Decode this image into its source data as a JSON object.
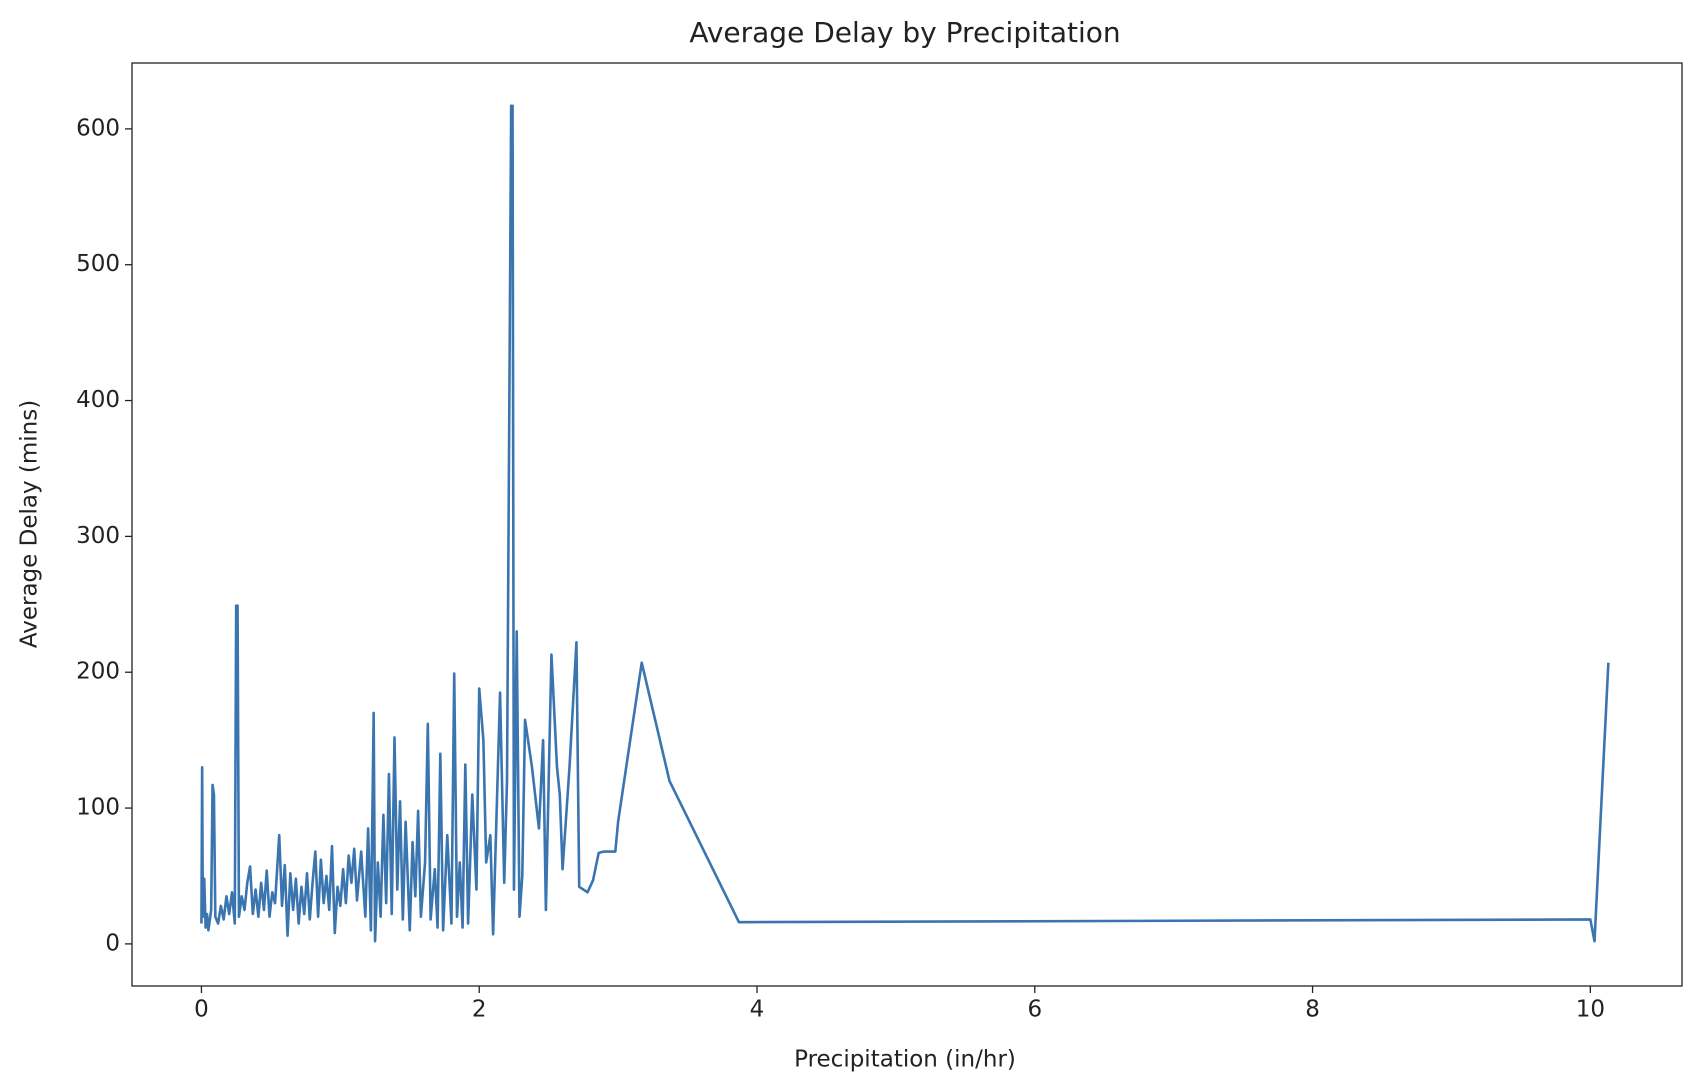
{
  "chart_data": {
    "type": "line",
    "title": "Average Delay by Precipitation",
    "xlabel": "Precipitation (in/hr)",
    "ylabel": "Average Delay (mins)",
    "xlim": [
      -0.5,
      10.66
    ],
    "ylim": [
      -31,
      648.5
    ],
    "xticks": [
      0,
      2,
      4,
      6,
      8,
      10
    ],
    "yticks": [
      0,
      100,
      200,
      300,
      400,
      500,
      600
    ],
    "grid": false,
    "x": [
      0,
      0.005,
      0.01,
      0.02,
      0.03,
      0.04,
      0.05,
      0.07,
      0.08,
      0.09,
      0.1,
      0.12,
      0.14,
      0.16,
      0.18,
      0.2,
      0.22,
      0.24,
      0.25,
      0.26,
      0.27,
      0.29,
      0.31,
      0.33,
      0.35,
      0.37,
      0.39,
      0.41,
      0.43,
      0.45,
      0.47,
      0.49,
      0.51,
      0.53,
      0.56,
      0.58,
      0.6,
      0.62,
      0.64,
      0.66,
      0.68,
      0.7,
      0.72,
      0.74,
      0.76,
      0.78,
      0.8,
      0.82,
      0.84,
      0.86,
      0.88,
      0.9,
      0.92,
      0.94,
      0.96,
      0.98,
      1.0,
      1.02,
      1.04,
      1.06,
      1.08,
      1.1,
      1.12,
      1.15,
      1.18,
      1.2,
      1.22,
      1.24,
      1.25,
      1.27,
      1.29,
      1.31,
      1.33,
      1.35,
      1.37,
      1.39,
      1.41,
      1.43,
      1.45,
      1.47,
      1.5,
      1.52,
      1.54,
      1.56,
      1.58,
      1.61,
      1.63,
      1.65,
      1.68,
      1.7,
      1.72,
      1.74,
      1.77,
      1.8,
      1.82,
      1.84,
      1.86,
      1.88,
      1.9,
      1.92,
      1.95,
      1.98,
      2.0,
      2.03,
      2.05,
      2.08,
      2.1,
      2.15,
      2.18,
      2.2,
      2.23,
      2.24,
      2.25,
      2.27,
      2.29,
      2.31,
      2.33,
      2.38,
      2.43,
      2.46,
      2.48,
      2.52,
      2.56,
      2.58,
      2.6,
      2.65,
      2.7,
      2.72,
      2.78,
      2.82,
      2.86,
      2.9,
      2.98,
      3.0,
      3.17,
      3.37,
      3.87,
      10.0,
      10.03,
      10.13
    ],
    "series": [
      {
        "name": "Average Delay",
        "color": "#3a75b0",
        "values": [
          15,
          130,
          20,
          48,
          12,
          22,
          10,
          25,
          117,
          110,
          20,
          15,
          28,
          18,
          35,
          22,
          38,
          15,
          249,
          249,
          20,
          35,
          25,
          45,
          57,
          22,
          40,
          20,
          45,
          25,
          54,
          20,
          38,
          30,
          80,
          28,
          58,
          6,
          52,
          25,
          48,
          15,
          42,
          22,
          52,
          18,
          45,
          68,
          20,
          62,
          30,
          50,
          25,
          72,
          8,
          42,
          28,
          55,
          30,
          65,
          45,
          70,
          32,
          68,
          20,
          85,
          10,
          170,
          2,
          60,
          20,
          95,
          30,
          125,
          22,
          152,
          40,
          105,
          18,
          90,
          10,
          75,
          35,
          98,
          20,
          60,
          162,
          18,
          55,
          12,
          140,
          10,
          80,
          15,
          199,
          20,
          60,
          12,
          132,
          15,
          110,
          40,
          188,
          150,
          60,
          80,
          7,
          185,
          45,
          120,
          617,
          617,
          40,
          230,
          20,
          50,
          165,
          130,
          85,
          150,
          25,
          213,
          130,
          110,
          55,
          130,
          222,
          42,
          38,
          47,
          67,
          68,
          68,
          90,
          207,
          120,
          16,
          18,
          2,
          207
        ]
      }
    ]
  }
}
